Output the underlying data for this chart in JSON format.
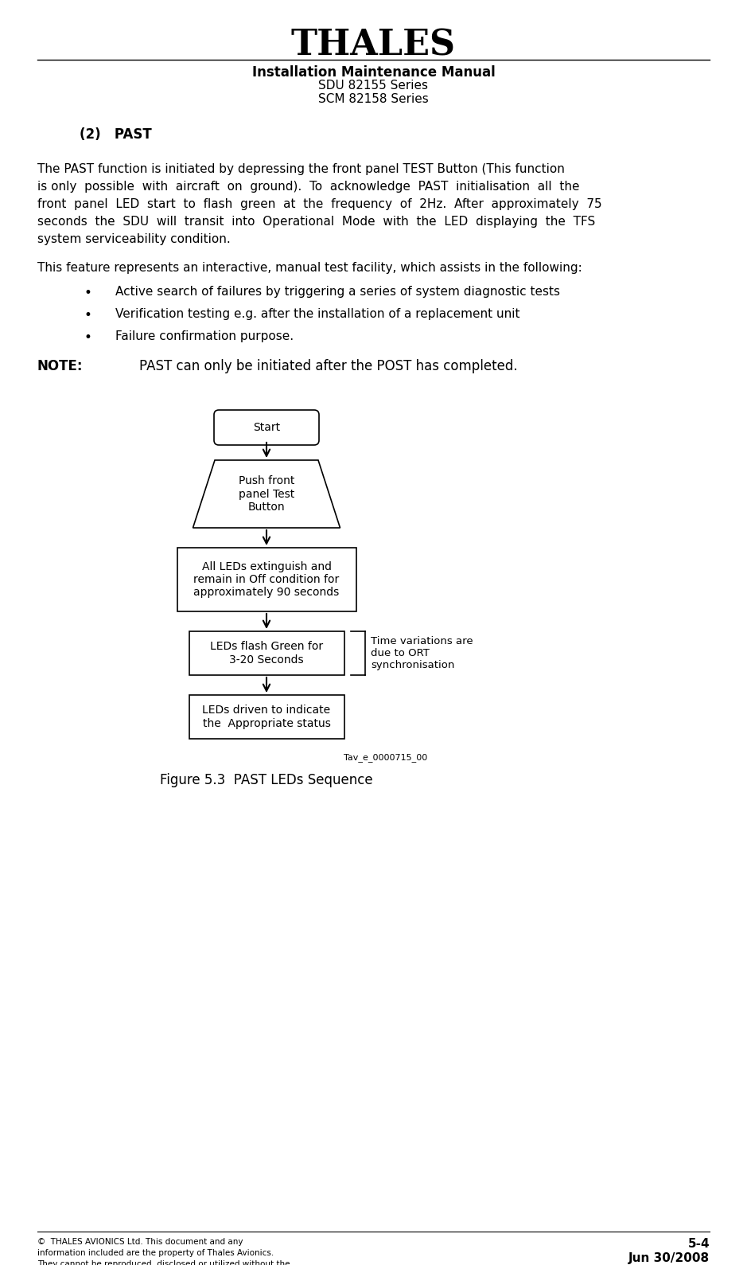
{
  "title_logo": "THALES",
  "header_line1": "Installation Maintenance Manual",
  "header_line2": "SDU 82155 Series",
  "header_line3": "SCM 82158 Series",
  "section_label": "(2)   PAST",
  "para1_lines": [
    "The PAST function is initiated by depressing the front panel TEST Button (This function",
    "is only  possible  with  aircraft  on  ground).  To  acknowledge  PAST  initialisation  all  the",
    "front  panel  LED  start  to  flash  green  at  the  frequency  of  2Hz.  After  approximately  75",
    "seconds  the  SDU  will  transit  into  Operational  Mode  with  the  LED  displaying  the  TFS",
    "system serviceability condition."
  ],
  "para2": "This feature represents an interactive, manual test facility, which assists in the following:",
  "bullets": [
    "Active search of failures by triggering a series of system diagnostic tests",
    "Verification testing e.g. after the installation of a replacement unit",
    "Failure confirmation purpose."
  ],
  "note_label": "NOTE:",
  "note_text": "PAST can only be initiated after the POST has completed.",
  "figure_caption": "Figure 5.3  PAST LEDs Sequence",
  "note_annot": "Time variations are\ndue to ORT\nsynchronisation",
  "ref_code": "Tav_e_0000715_00",
  "footer_left": "©  THALES AVIONICS Ltd. This document and any\ninformation included are the property of Thales Avionics.\nThey cannot be reproduced, disclosed or utilized without the\ncompany’s prior written approval",
  "footer_right_line1": "5-4",
  "footer_right_line2": "Jun 30/2008",
  "bg_color": "#ffffff",
  "text_color": "#000000"
}
